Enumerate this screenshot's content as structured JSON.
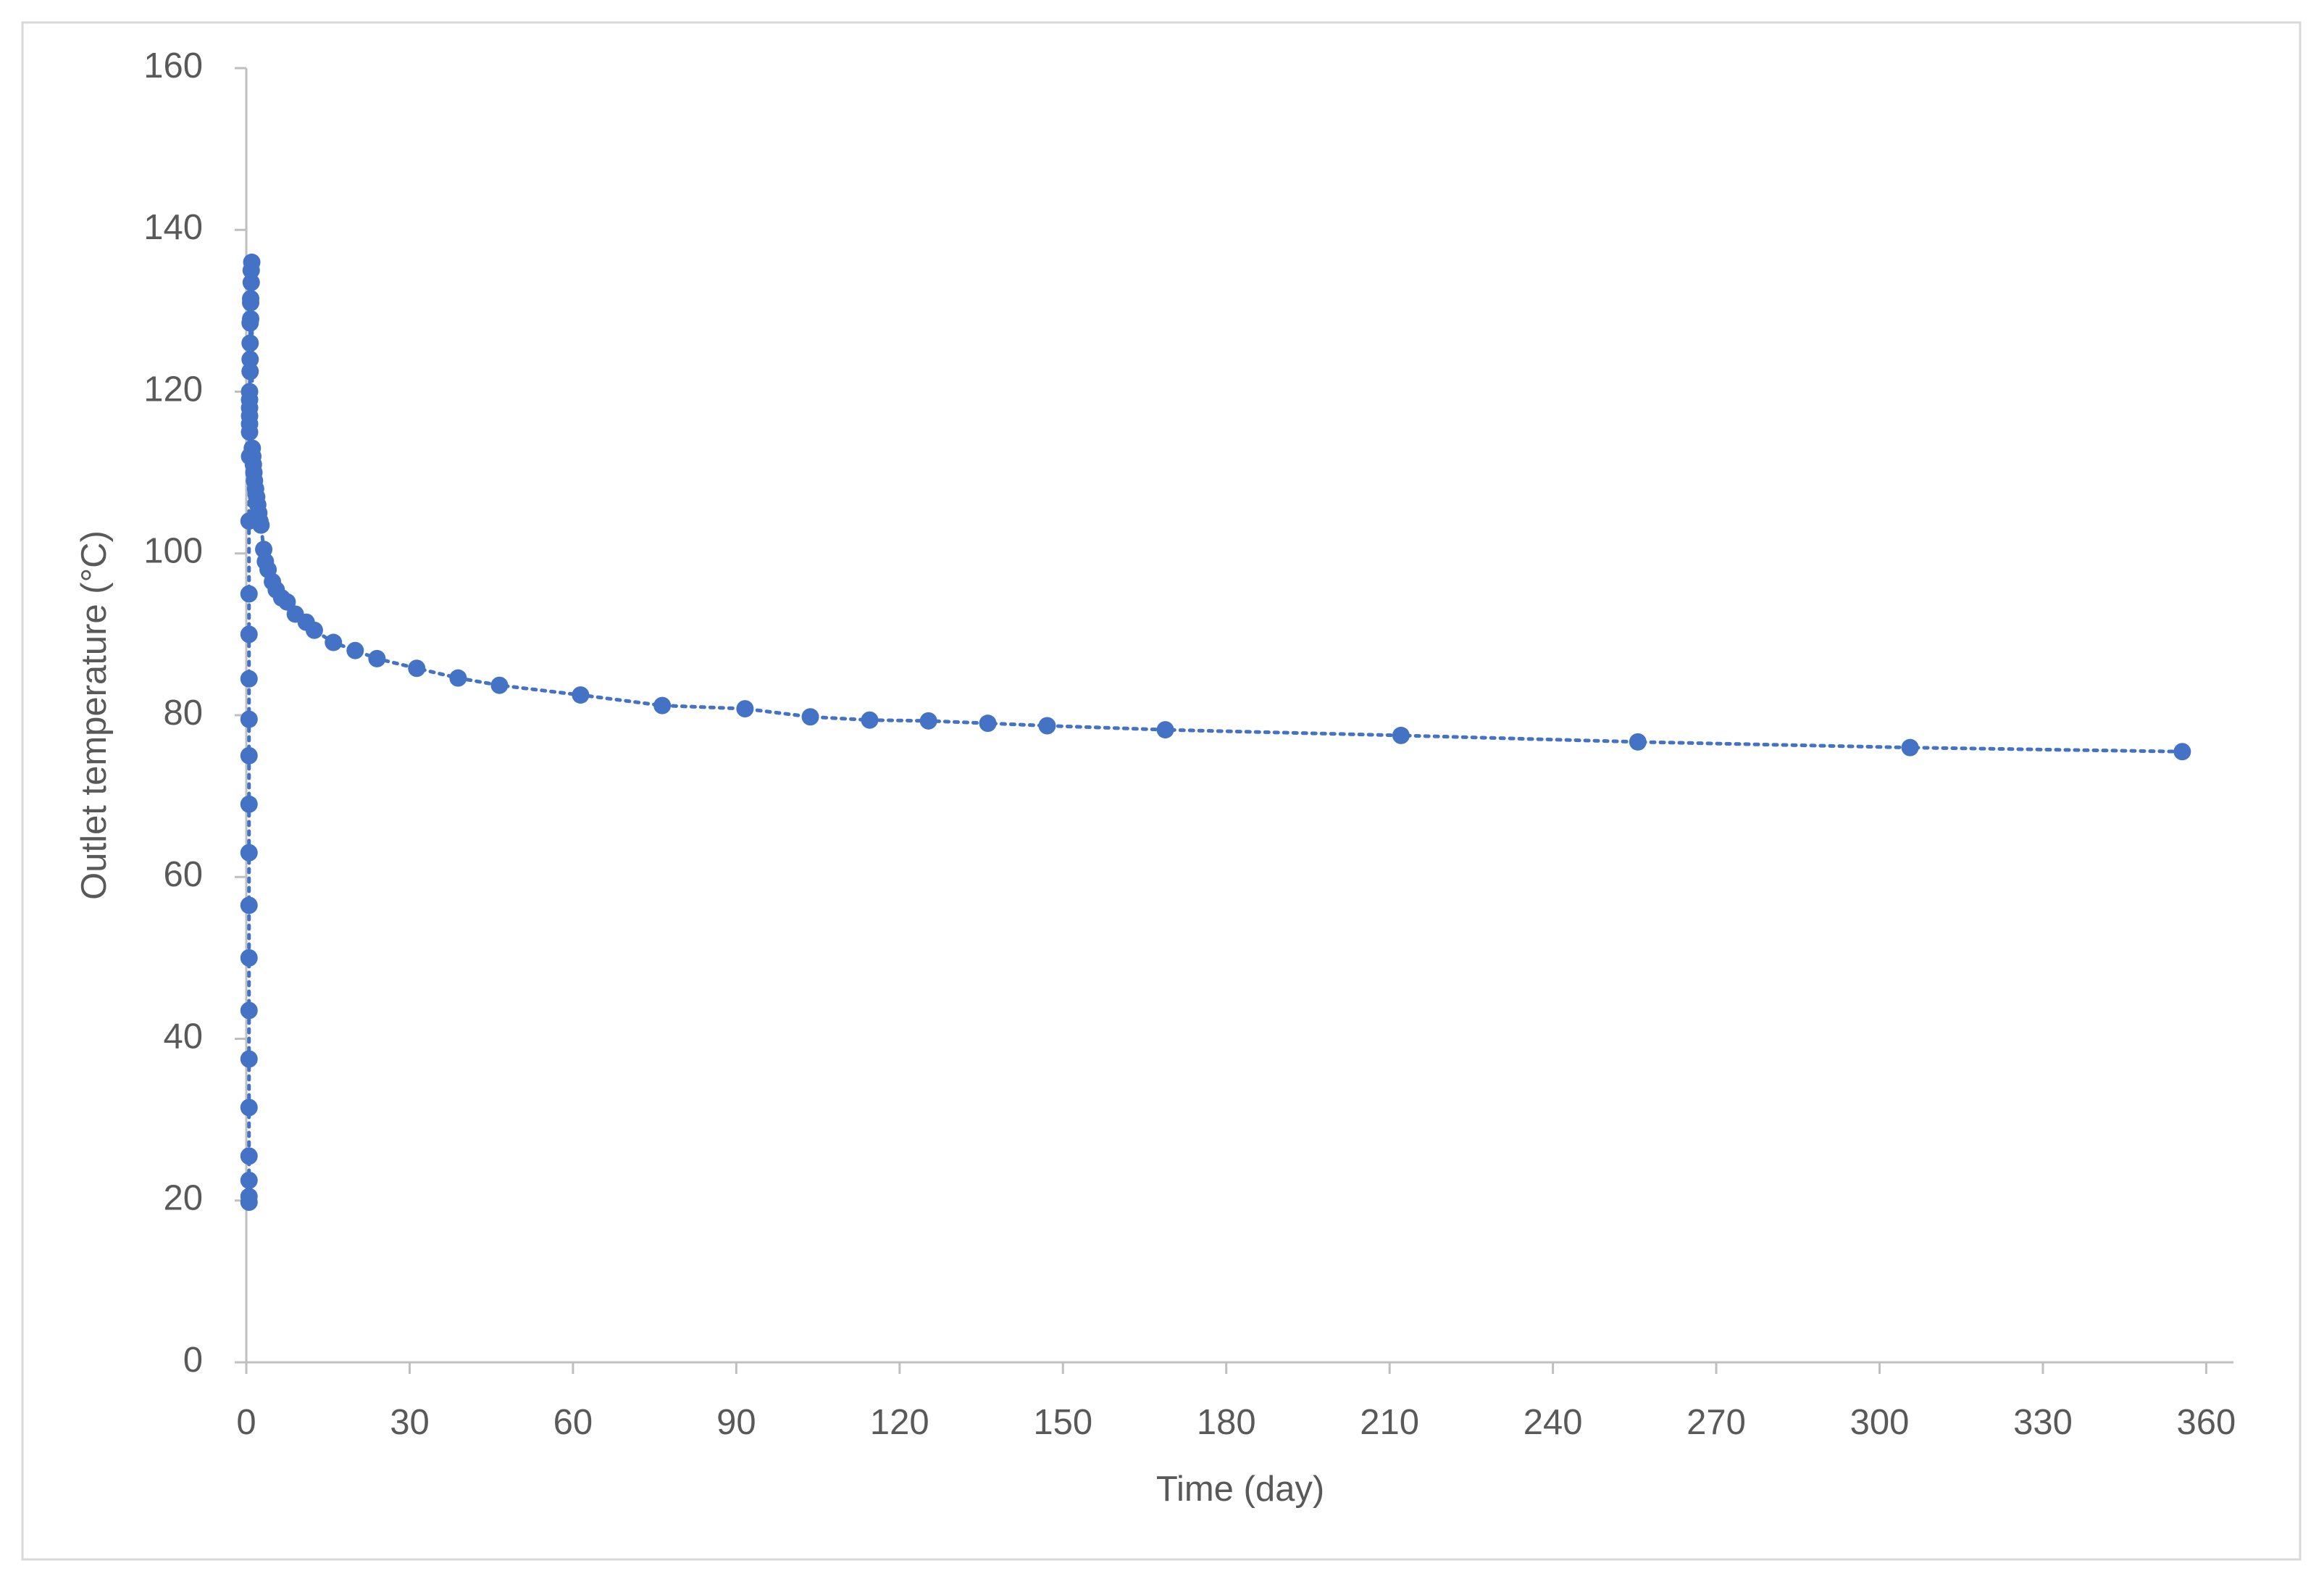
{
  "chart_data": {
    "type": "scatter",
    "x_label": "Time (day)",
    "y_label": "Outlet temperature (°C)",
    "x": [
      0.5,
      0.5,
      0.5,
      0.5,
      0.5,
      0.5,
      0.5,
      0.5,
      0.5,
      0.5,
      0.5,
      0.5,
      0.5,
      0.5,
      0.5,
      0.5,
      0.5,
      0.6,
      0.6,
      0.6,
      0.6,
      0.6,
      0.6,
      0.6,
      0.7,
      0.7,
      0.7,
      0.7,
      0.8,
      0.8,
      0.8,
      0.9,
      0.9,
      1.0,
      1.1,
      1.2,
      1.3,
      1.4,
      1.5,
      1.7,
      1.9,
      2.1,
      2.3,
      2.5,
      2.7,
      3.2,
      3.5,
      4,
      4.8,
      5.5,
      6.5,
      7.5,
      9,
      11,
      12.5,
      16,
      20,
      24,
      31.3,
      38.9,
      46.5,
      61.4,
      76.4,
      91.6,
      103.6,
      114.5,
      125.3,
      136.2,
      147.1,
      168.8,
      212.1,
      255.6,
      305.6,
      355.6
    ],
    "series": [
      {
        "color": "#4472c4",
        "values": [
          19.8,
          20.5,
          22.5,
          25.5,
          31.5,
          37.5,
          43.5,
          50,
          56.5,
          63,
          69,
          75,
          79.5,
          84.5,
          90,
          95,
          104,
          112,
          115,
          116,
          117,
          118,
          119,
          120,
          122.5,
          124,
          126,
          128.5,
          129,
          131,
          131.5,
          133.5,
          135,
          136,
          113,
          112,
          111,
          110,
          109,
          108,
          107,
          106,
          105,
          104,
          103.5,
          100.5,
          99,
          98,
          96.5,
          95.5,
          94.5,
          94,
          92.5,
          91.5,
          90.5,
          89,
          88,
          87,
          85.8,
          84.6,
          83.7,
          82.5,
          81.2,
          80.8,
          79.8,
          79.4,
          79.3,
          79,
          78.7,
          78.2,
          77.5,
          76.7,
          76,
          75.5
        ]
      }
    ],
    "xlim": [
      0,
      365
    ],
    "xticks": [
      0,
      30,
      60,
      90,
      120,
      150,
      180,
      210,
      240,
      270,
      300,
      330,
      360
    ],
    "ylim": [
      0,
      160
    ],
    "yticks": [
      0,
      20,
      40,
      60,
      80,
      100,
      120,
      140,
      160
    ]
  }
}
